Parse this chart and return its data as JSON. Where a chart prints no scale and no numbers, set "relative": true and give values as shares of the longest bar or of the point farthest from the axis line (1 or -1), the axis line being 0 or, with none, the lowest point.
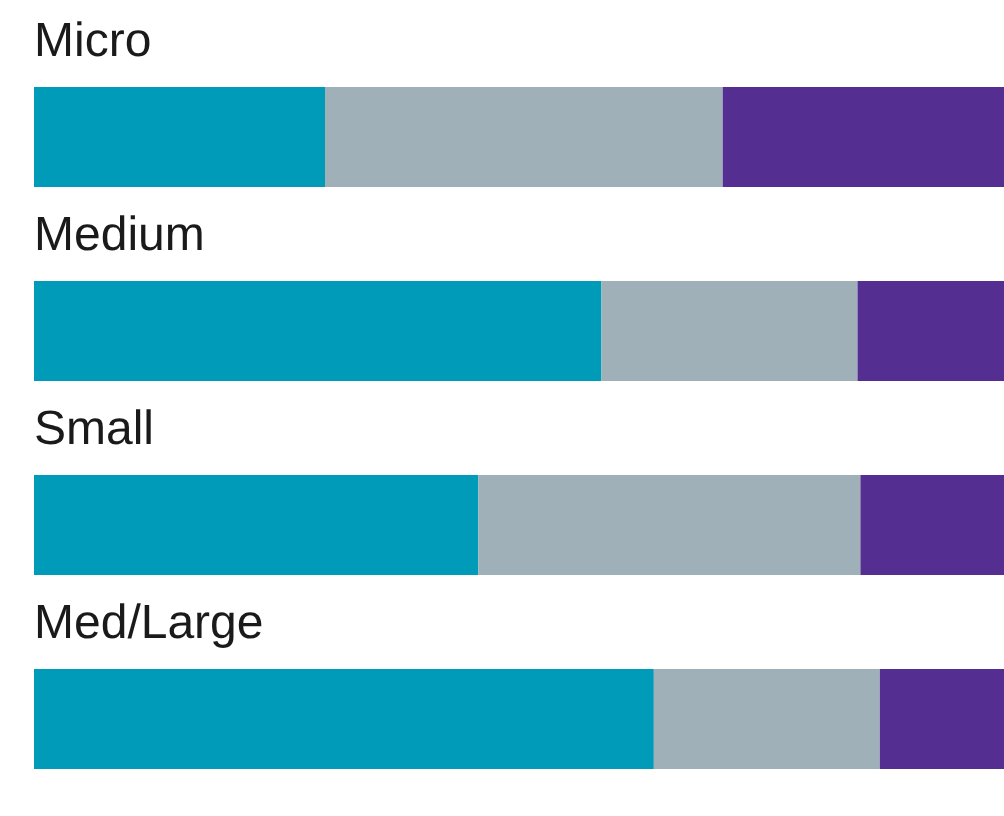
{
  "chart_data": {
    "type": "bar",
    "orientation": "horizontal",
    "stacked": true,
    "relative": true,
    "categories": [
      "Micro",
      "Medium",
      "Small",
      "Med/Large"
    ],
    "series": [
      {
        "color": "#009bb8",
        "values": [
          0.3,
          0.585,
          0.458,
          0.639
        ]
      },
      {
        "color": "#9fb0b8",
        "values": [
          0.41,
          0.264,
          0.394,
          0.233
        ]
      },
      {
        "color": "#542e91",
        "values": [
          0.29,
          0.151,
          0.148,
          0.128
        ]
      }
    ]
  }
}
